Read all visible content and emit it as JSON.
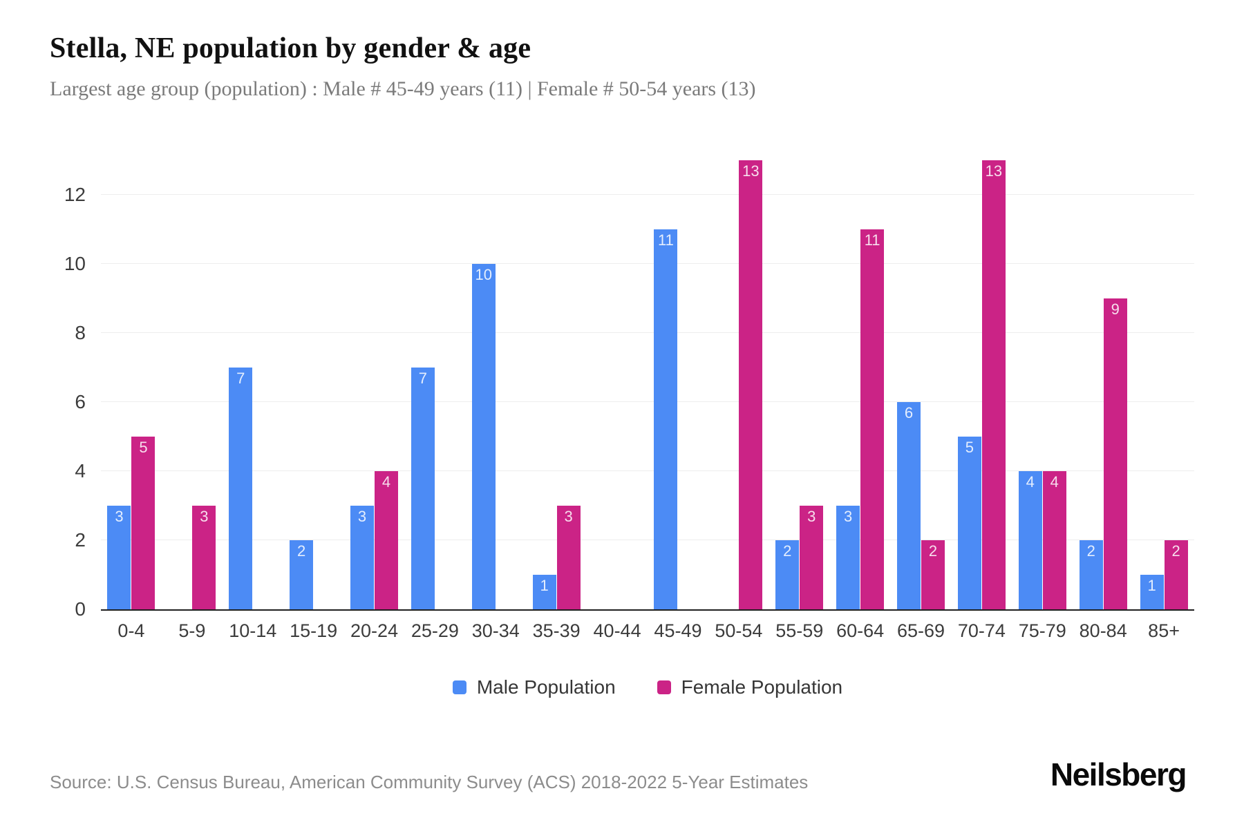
{
  "header": {
    "title": "Stella, NE population by gender & age",
    "subtitle": "Largest age group (population) : Male # 45-49 years (11) | Female # 50-54 years (13)"
  },
  "chart_data": {
    "type": "bar",
    "title": "Stella, NE population by gender & age",
    "categories": [
      "0-4",
      "5-9",
      "10-14",
      "15-19",
      "20-24",
      "25-29",
      "30-34",
      "35-39",
      "40-44",
      "45-49",
      "50-54",
      "55-59",
      "60-64",
      "65-69",
      "70-74",
      "75-79",
      "80-84",
      "85+"
    ],
    "series": [
      {
        "name": "Male Population",
        "color": "#4C8BF5",
        "values": [
          3,
          0,
          7,
          2,
          3,
          7,
          10,
          1,
          0,
          11,
          0,
          2,
          3,
          6,
          5,
          4,
          2,
          1
        ]
      },
      {
        "name": "Female Population",
        "color": "#CB2386",
        "values": [
          5,
          3,
          0,
          0,
          4,
          0,
          0,
          3,
          0,
          0,
          13,
          3,
          11,
          2,
          13,
          4,
          9,
          2
        ]
      }
    ],
    "xlabel": "",
    "ylabel": "",
    "yticks": [
      0,
      2,
      4,
      6,
      8,
      10,
      12
    ],
    "ylim": [
      0,
      13
    ],
    "grid": true,
    "legend_position": "bottom",
    "value_labels": "inside-top"
  },
  "footer": {
    "source": "Source: U.S. Census Bureau, American Community Survey (ACS) 2018-2022 5-Year Estimates",
    "brand": "Neilsberg"
  }
}
